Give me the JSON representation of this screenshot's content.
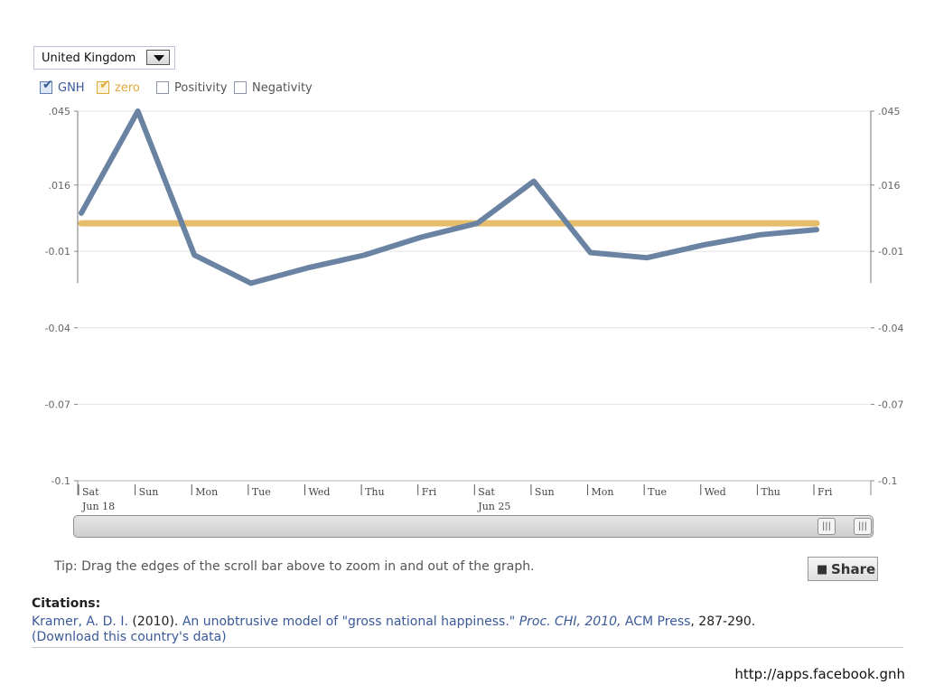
{
  "country_select": {
    "value": "United Kingdom"
  },
  "toggles": [
    {
      "label": "GNH",
      "checked": true,
      "color": "#3b5998"
    },
    {
      "label": "zero",
      "checked": true,
      "color": "#e0a93a"
    },
    {
      "label": "Positivity",
      "checked": false,
      "color": "#555555"
    },
    {
      "label": "Negativity",
      "checked": false,
      "color": "#555555"
    }
  ],
  "chart_data": {
    "type": "line",
    "categories": [
      "Sat",
      "Sun",
      "Mon",
      "Tue",
      "Wed",
      "Thu",
      "Fri",
      "Sat",
      "Sun",
      "Mon",
      "Tue",
      "Wed",
      "Thu",
      "Fri"
    ],
    "date_labels": [
      "Jun 18",
      "",
      "",
      "",
      "",
      "",
      "",
      "Jun 25",
      "",
      "",
      "",
      "",
      "",
      ""
    ],
    "series": [
      {
        "name": "GNH",
        "color": "#6a83a3",
        "values": [
          0.005,
          0.045,
          -0.0115,
          -0.0225,
          -0.0165,
          -0.0115,
          -0.0045,
          0.001,
          0.0175,
          -0.0105,
          -0.0125,
          -0.0075,
          -0.0035,
          -0.0015
        ]
      },
      {
        "name": "zero",
        "color": "#e6bd6a",
        "values": [
          0.001,
          0.001,
          0.001,
          0.001,
          0.001,
          0.001,
          0.001,
          0.001,
          0.001,
          0.001,
          0.001,
          0.001,
          0.001,
          0.001
        ]
      }
    ],
    "ylim": [
      -0.1,
      0.045
    ],
    "yticks": [
      0.045,
      0.016,
      -0.01,
      -0.04,
      -0.07,
      -0.1
    ],
    "ytick_labels": [
      ".045",
      ".016",
      "-0.01",
      "-0.04",
      "-0.07",
      "-0.1"
    ],
    "grid": true,
    "title": "",
    "xlabel": "",
    "ylabel": ""
  },
  "scrollbar": {
    "handle_left_glyph": "|||",
    "handle_right_glyph": "|||"
  },
  "tip": "Tip: Drag the edges of the scroll bar above to zoom in and out of the graph.",
  "share_button": {
    "label": "Share",
    "icon": "comment-icon"
  },
  "citations": {
    "heading": "Citations:",
    "author": "Kramer, A. D. I.",
    "year": "(2010).",
    "title": "An unobtrusive model of \"gross national happiness.\"",
    "venue": "Proc. CHI, 2010,",
    "publisher": "ACM Press",
    "pages": ", 287-290.",
    "download_link": "(Download this country's data)"
  },
  "source_url": "http://apps.facebook.gnh"
}
